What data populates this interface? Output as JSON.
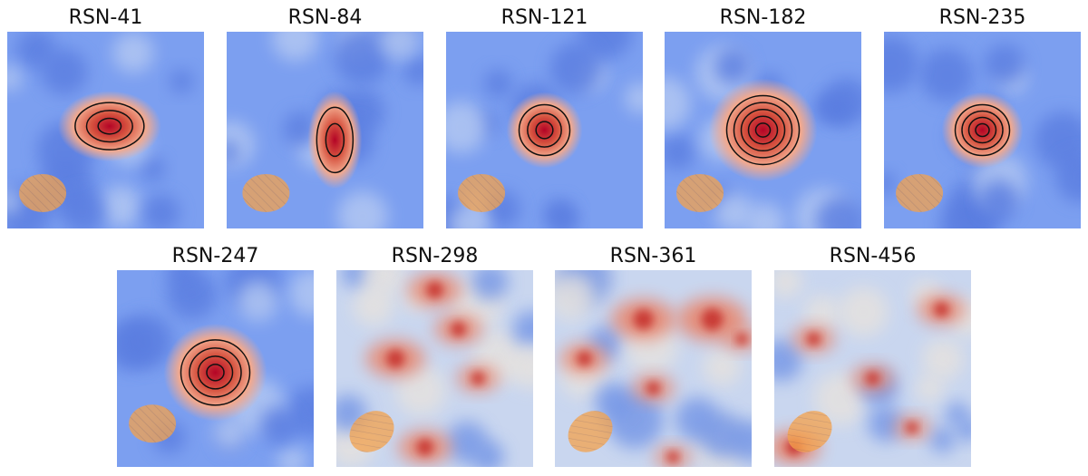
{
  "panels": [
    {
      "title": "RSN-41"
    },
    {
      "title": "RSN-84"
    },
    {
      "title": "RSN-121"
    },
    {
      "title": "RSN-182"
    },
    {
      "title": "RSN-235"
    },
    {
      "title": "RSN-247"
    },
    {
      "title": "RSN-298"
    },
    {
      "title": "RSN-361"
    },
    {
      "title": "RSN-456"
    }
  ]
}
